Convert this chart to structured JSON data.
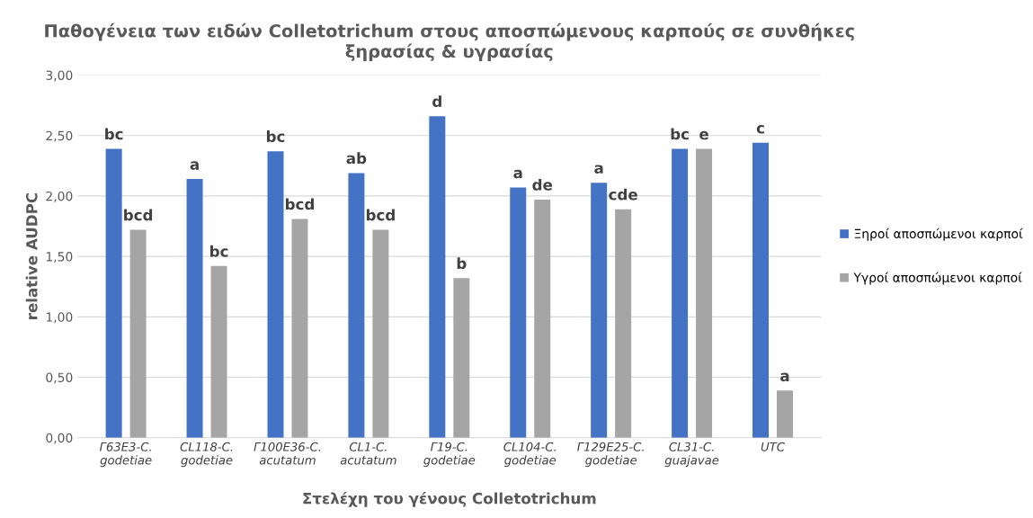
{
  "chart_data": {
    "type": "bar",
    "title": "Παθογένεια των ειδών Colletotrichum στους αποσπώμενους καρπούς σε συνθήκες\nξηρασίας & υγρασίας",
    "xlabel": "Στελέχη του γένους Colletotrichum",
    "ylabel": "relative AUDPC",
    "categories": [
      "Γ63Ε3-C.\ngodetiae",
      "CL118-C.\ngodetiae",
      "Γ100Ε36-C.\nacutatum",
      "CL1-C.\nacutatum",
      "Γ19-C.\ngodetiae",
      "CL104-C.\ngodetiae",
      "Γ129Ε25-C.\ngodetiae",
      "CL31-C.\nguajavae",
      "UTC"
    ],
    "series": [
      {
        "name": "Ξηροί αποσπώμενοι καρποί",
        "color": "#4472c4",
        "values": [
          2.39,
          2.14,
          2.37,
          2.19,
          2.66,
          2.07,
          2.11,
          2.39,
          2.44
        ],
        "value_labels": [
          "bc",
          "a",
          "bc",
          "ab",
          "d",
          "a",
          "a",
          "bc",
          "c"
        ]
      },
      {
        "name": "Υγροί αποσπώμενοι καρποί",
        "color": "#a5a5a5",
        "values": [
          1.72,
          1.42,
          1.81,
          1.72,
          1.32,
          1.97,
          1.89,
          2.39,
          0.39
        ],
        "value_labels": [
          "bcd",
          "bc",
          "bcd",
          "bcd",
          "b",
          "de",
          "cde",
          "e",
          "a"
        ]
      }
    ],
    "ylim": [
      0,
      3
    ],
    "yticks": [
      {
        "value": 0,
        "label": "0,00"
      },
      {
        "value": 0.5,
        "label": "0,50"
      },
      {
        "value": 1,
        "label": "1,00"
      },
      {
        "value": 1.5,
        "label": "1,50"
      },
      {
        "value": 2,
        "label": "2,00"
      },
      {
        "value": 2.5,
        "label": "2,50"
      },
      {
        "value": 3,
        "label": "3,00"
      }
    ],
    "grid": "y",
    "legend": "right"
  }
}
